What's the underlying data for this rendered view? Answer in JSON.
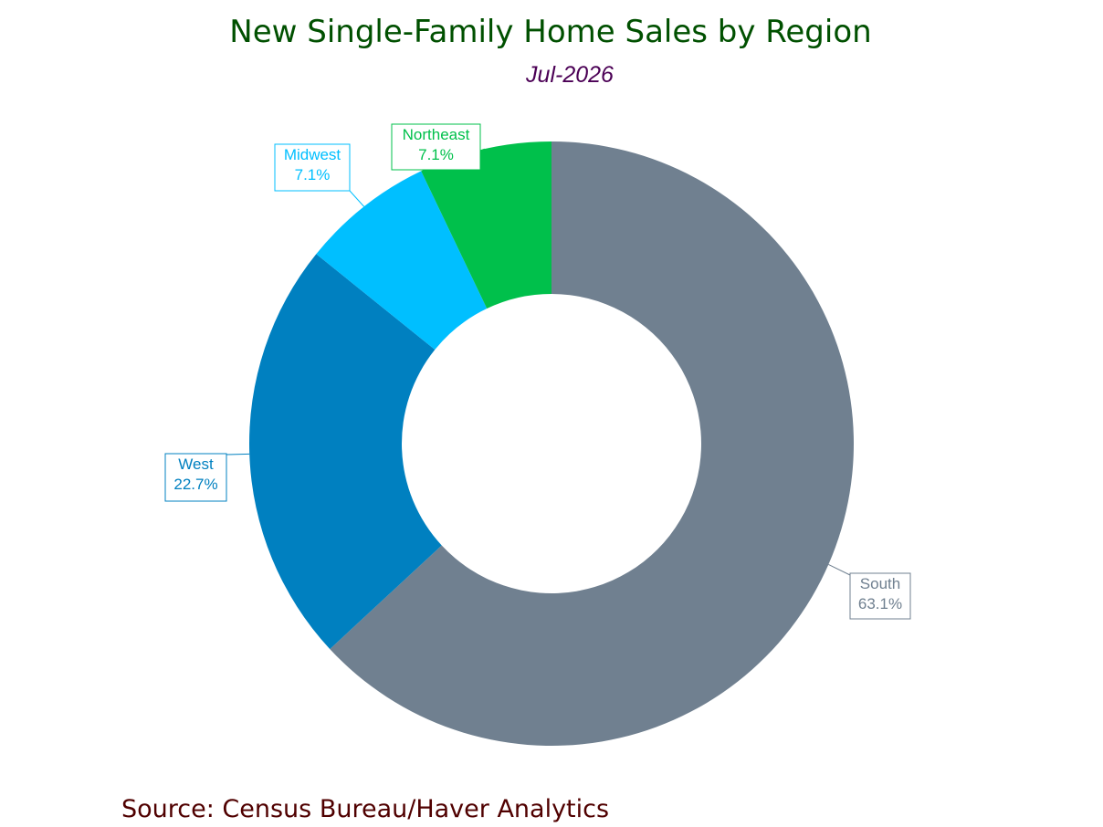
{
  "chart_data": {
    "type": "pie",
    "variant": "donut",
    "title": "New Single-Family Home Sales by Region",
    "subtitle": "Jul-2026",
    "slices": [
      {
        "name": "South",
        "value": 63.1,
        "label": "63.1%",
        "color": "#708090"
      },
      {
        "name": "West",
        "value": 22.7,
        "label": "22.7%",
        "color": "#0080C0"
      },
      {
        "name": "Midwest",
        "value": 7.1,
        "label": "7.1%",
        "color": "#00BFFF"
      },
      {
        "name": "Northeast",
        "value": 7.1,
        "label": "7.1%",
        "color": "#00C04B"
      }
    ],
    "start": "12 o'clock",
    "direction": "clockwise",
    "legend": "none",
    "source": "Source:  Census Bureau/Haver Analytics"
  },
  "colors": {
    "title": "#005000",
    "subtitle": "#4B0055",
    "source": "#500000"
  }
}
